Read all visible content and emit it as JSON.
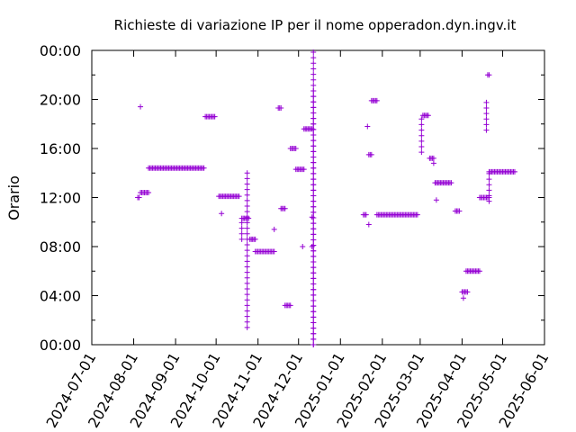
{
  "chart_data": {
    "type": "scatter",
    "title": "Richieste di variazione IP per il nome opperadon.dyn.ingv.it",
    "ylabel": "Orario",
    "xlabel": "",
    "marker": "+",
    "colors": {
      "points": "#9400d3",
      "axis": "#000000",
      "grid": "#a0a0a0"
    },
    "x_axis": {
      "type": "date",
      "range": [
        "2024-07-01",
        "2025-06-01"
      ],
      "tick_labels": [
        "2024-07-01",
        "2024-08-01",
        "2024-09-01",
        "2024-10-01",
        "2024-11-01",
        "2024-12-01",
        "2025-01-01",
        "2025-02-01",
        "2025-03-01",
        "2025-04-01",
        "2025-05-01",
        "2025-06-01"
      ]
    },
    "y_axis": {
      "unit": "hours",
      "range": [
        0,
        24
      ],
      "tick_values": [
        0,
        4,
        8,
        12,
        16,
        20,
        24
      ],
      "tick_labels": [
        "00:00",
        "04:00",
        "08:00",
        "12:00",
        "16:00",
        "20:00",
        "00:00"
      ]
    },
    "grid": false,
    "series": [
      {
        "horizontal_runs": [
          [
            "2024-08-04",
            "2024-08-05",
            12.0
          ],
          [
            "2024-08-06",
            "2024-08-12",
            12.4
          ],
          [
            "2024-08-12",
            "2024-09-22",
            14.4
          ],
          [
            "2024-09-23",
            "2024-09-30",
            18.6
          ],
          [
            "2024-10-03",
            "2024-10-18",
            12.1
          ],
          [
            "2024-10-20",
            "2024-10-25",
            10.3
          ],
          [
            "2024-10-26",
            "2024-10-30",
            8.6
          ],
          [
            "2024-10-30",
            "2024-11-13",
            7.6
          ],
          [
            "2024-11-16",
            "2024-11-18",
            19.3
          ],
          [
            "2024-11-18",
            "2024-11-21",
            11.1
          ],
          [
            "2024-11-21",
            "2024-11-25",
            3.2
          ],
          [
            "2024-11-25",
            "2024-11-29",
            16.0
          ],
          [
            "2024-11-29",
            "2024-12-05",
            14.3
          ],
          [
            "2024-12-05",
            "2024-12-11",
            17.6
          ],
          [
            "2025-01-18",
            "2025-01-20",
            10.6
          ],
          [
            "2025-01-22",
            "2025-01-24",
            15.5
          ],
          [
            "2025-01-24",
            "2025-01-28",
            19.9
          ],
          [
            "2025-01-28",
            "2025-02-27",
            10.6
          ],
          [
            "2025-03-03",
            "2025-03-07",
            18.7
          ],
          [
            "2025-03-08",
            "2025-03-11",
            15.2
          ],
          [
            "2025-03-12",
            "2025-03-24",
            13.2
          ],
          [
            "2025-03-27",
            "2025-03-30",
            10.9
          ],
          [
            "2025-04-01",
            "2025-04-05",
            4.3
          ],
          [
            "2025-04-04",
            "2025-04-14",
            6.0
          ],
          [
            "2025-04-14",
            "2025-04-21",
            12.0
          ],
          [
            "2025-04-21",
            "2025-05-10",
            14.1
          ]
        ],
        "vertical_runs": [
          [
            "2024-10-20",
            8.6,
            10.3
          ],
          [
            "2024-10-24",
            1.4,
            14.2
          ],
          [
            "2024-12-12",
            0.0,
            21.0
          ],
          [
            "2024-12-12",
            0.0,
            24.0
          ],
          [
            "2025-03-02",
            15.7,
            18.7
          ],
          [
            "2025-04-19",
            17.5,
            20.1
          ],
          [
            "2025-04-21",
            11.7,
            14.1
          ]
        ],
        "points": [
          [
            "2024-08-06",
            19.4
          ],
          [
            "2024-10-05",
            10.7
          ],
          [
            "2024-11-13",
            9.4
          ],
          [
            "2024-12-04",
            8.0
          ],
          [
            "2024-12-11",
            8.0
          ],
          [
            "2024-12-11",
            10.4
          ],
          [
            "2025-01-21",
            17.8
          ],
          [
            "2025-01-22",
            9.8
          ],
          [
            "2025-03-11",
            14.8
          ],
          [
            "2025-03-13",
            11.8
          ],
          [
            "2025-04-02",
            3.8
          ],
          [
            "2025-04-20",
            22.0
          ],
          [
            "2025-04-21",
            22.0
          ]
        ]
      }
    ]
  }
}
